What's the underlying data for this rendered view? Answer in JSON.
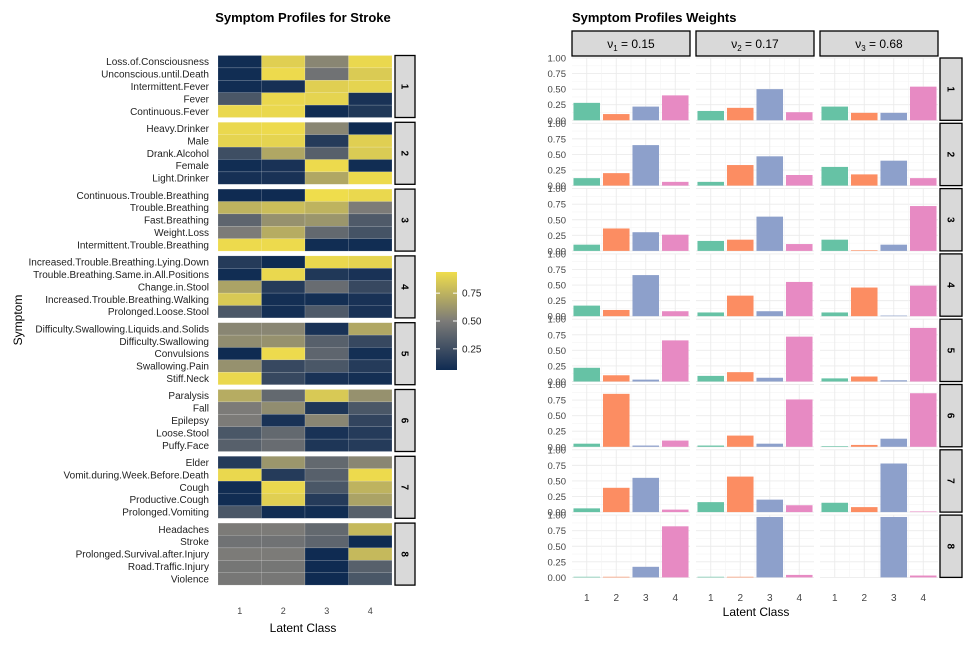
{
  "chart_data": [
    {
      "type": "heatmap",
      "title": "Symptom Profiles for Stroke",
      "xlabel": "Latent Class",
      "ylabel": "Symptom",
      "x_categories": [
        "1",
        "2",
        "3",
        "4"
      ],
      "legend": {
        "ticks": [
          "0.75",
          "0.50",
          "0.25"
        ],
        "tick_values": [
          0.75,
          0.5,
          0.25
        ],
        "range": [
          0.06,
          0.94
        ],
        "placement": "right"
      },
      "colors": {
        "low": "#00204d",
        "mid": "#7c7b78",
        "high": "#ffea46",
        "panel_strip": "#d9d9d9"
      },
      "panels": [
        {
          "label": "1",
          "rows": [
            {
              "symptom": "Loss.of.Consciousness",
              "values": [
                0.07,
                0.88,
                0.55,
                0.92
              ]
            },
            {
              "symptom": "Unconscious.until.Death",
              "values": [
                0.07,
                0.93,
                0.45,
                0.86
              ]
            },
            {
              "symptom": "Intermittent.Fever",
              "values": [
                0.07,
                0.09,
                0.88,
                0.9
              ]
            },
            {
              "symptom": "Fever",
              "values": [
                0.3,
                0.92,
                0.9,
                0.1
              ]
            },
            {
              "symptom": "Continuous.Fever",
              "values": [
                0.92,
                0.92,
                0.07,
                0.13
              ]
            }
          ]
        },
        {
          "label": "2",
          "rows": [
            {
              "symptom": "Heavy.Drinker",
              "values": [
                0.92,
                0.93,
                0.55,
                0.06
              ]
            },
            {
              "symptom": "Male",
              "values": [
                0.9,
                0.9,
                0.15,
                0.88
              ]
            },
            {
              "symptom": "Drank.Alcohol",
              "values": [
                0.25,
                0.7,
                0.35,
                0.86
              ]
            },
            {
              "symptom": "Female",
              "values": [
                0.07,
                0.1,
                0.93,
                0.07
              ]
            },
            {
              "symptom": "Light.Drinker",
              "values": [
                0.09,
                0.1,
                0.7,
                0.93
              ]
            }
          ]
        },
        {
          "label": "3",
          "rows": [
            {
              "symptom": "Continuous.Trouble.Breathing",
              "values": [
                0.06,
                0.06,
                0.94,
                0.92
              ]
            },
            {
              "symptom": "Trouble.Breathing",
              "values": [
                0.75,
                0.8,
                0.75,
                0.5
              ]
            },
            {
              "symptom": "Fast.Breathing",
              "values": [
                0.38,
                0.6,
                0.62,
                0.32
              ]
            },
            {
              "symptom": "Weight.Loss",
              "values": [
                0.5,
                0.72,
                0.4,
                0.28
              ]
            },
            {
              "symptom": "Intermittent.Trouble.Breathing",
              "values": [
                0.93,
                0.93,
                0.07,
                0.07
              ]
            }
          ]
        },
        {
          "label": "4",
          "rows": [
            {
              "symptom": "Increased.Trouble.Breathing.Lying.Down",
              "values": [
                0.15,
                0.06,
                0.92,
                0.9
              ]
            },
            {
              "symptom": "Trouble.Breathing.Same.in.All.Positions",
              "values": [
                0.07,
                0.92,
                0.13,
                0.1
              ]
            },
            {
              "symptom": "Change.in.Stool",
              "values": [
                0.68,
                0.15,
                0.42,
                0.22
              ]
            },
            {
              "symptom": "Increased.Trouble.Breathing.Walking",
              "values": [
                0.85,
                0.08,
                0.08,
                0.1
              ]
            },
            {
              "symptom": "Prolonged.Loose.Stool",
              "values": [
                0.3,
                0.08,
                0.32,
                0.1
              ]
            }
          ]
        },
        {
          "label": "5",
          "rows": [
            {
              "symptom": "Difficulty.Swallowing.Liquids.and.Solids",
              "values": [
                0.55,
                0.55,
                0.1,
                0.7
              ]
            },
            {
              "symptom": "Difficulty.Swallowing",
              "values": [
                0.58,
                0.6,
                0.35,
                0.22
              ]
            },
            {
              "symptom": "Convulsions",
              "values": [
                0.06,
                0.93,
                0.38,
                0.08
              ]
            },
            {
              "symptom": "Swallowing.Pain",
              "values": [
                0.6,
                0.22,
                0.3,
                0.15
              ]
            },
            {
              "symptom": "Stiff.Neck",
              "values": [
                0.92,
                0.22,
                0.1,
                0.08
              ]
            }
          ]
        },
        {
          "label": "6",
          "rows": [
            {
              "symptom": "Paralysis",
              "values": [
                0.72,
                0.4,
                0.85,
                0.6
              ]
            },
            {
              "symptom": "Fall",
              "values": [
                0.5,
                0.58,
                0.12,
                0.3
              ]
            },
            {
              "symptom": "Epilepsy",
              "values": [
                0.5,
                0.1,
                0.55,
                0.2
              ]
            },
            {
              "symptom": "Loose.Stool",
              "values": [
                0.3,
                0.4,
                0.1,
                0.15
              ]
            },
            {
              "symptom": "Puffy.Face",
              "values": [
                0.35,
                0.42,
                0.12,
                0.15
              ]
            }
          ]
        },
        {
          "label": "7",
          "rows": [
            {
              "symptom": "Elder",
              "values": [
                0.15,
                0.62,
                0.4,
                0.55
              ]
            },
            {
              "symptom": "Vomit.during.Week.Before.Death",
              "values": [
                0.92,
                0.15,
                0.35,
                0.93
              ]
            },
            {
              "symptom": "Cough",
              "values": [
                0.07,
                0.92,
                0.3,
                0.75
              ]
            },
            {
              "symptom": "Productive.Cough",
              "values": [
                0.07,
                0.88,
                0.15,
                0.68
              ]
            },
            {
              "symptom": "Prolonged.Vomiting",
              "values": [
                0.3,
                0.07,
                0.07,
                0.35
              ]
            }
          ]
        },
        {
          "label": "8",
          "rows": [
            {
              "symptom": "Headaches",
              "values": [
                0.5,
                0.5,
                0.4,
                0.78
              ]
            },
            {
              "symptom": "Stroke",
              "values": [
                0.45,
                0.45,
                0.38,
                0.06
              ]
            },
            {
              "symptom": "Prolonged.Survival.after.Injury",
              "values": [
                0.5,
                0.5,
                0.06,
                0.78
              ]
            },
            {
              "symptom": "Road.Traffic.Injury",
              "values": [
                0.47,
                0.47,
                0.06,
                0.35
              ]
            },
            {
              "symptom": "Violence",
              "values": [
                0.48,
                0.48,
                0.06,
                0.3
              ]
            }
          ]
        }
      ]
    },
    {
      "type": "bar",
      "title": "Symptom Profiles Weights",
      "xlabel": "Latent Class",
      "categories": [
        "1",
        "2",
        "3",
        "4"
      ],
      "ylim": [
        0,
        1
      ],
      "y_ticks": [
        "0.00",
        "0.25",
        "0.50",
        "0.75",
        "1.00"
      ],
      "bar_colors": [
        "#66c2a5",
        "#fc8d62",
        "#8da0cb",
        "#e78ac3"
      ],
      "columns": [
        {
          "symbol": "ν",
          "subscript": "1",
          "rest": " = 0.15"
        },
        {
          "symbol": "ν",
          "subscript": "2",
          "rest": " = 0.17"
        },
        {
          "symbol": "ν",
          "subscript": "3",
          "rest": " = 0.68"
        }
      ],
      "rows": [
        "1",
        "2",
        "3",
        "4",
        "5",
        "6",
        "7",
        "8"
      ],
      "values": [
        [
          [
            0.28,
            0.1,
            0.22,
            0.4
          ],
          [
            0.15,
            0.2,
            0.5,
            0.13
          ],
          [
            0.22,
            0.12,
            0.12,
            0.54
          ]
        ],
        [
          [
            0.12,
            0.2,
            0.65,
            0.06
          ],
          [
            0.06,
            0.33,
            0.47,
            0.17
          ],
          [
            0.3,
            0.18,
            0.4,
            0.12
          ]
        ],
        [
          [
            0.1,
            0.36,
            0.3,
            0.26
          ],
          [
            0.16,
            0.18,
            0.55,
            0.11
          ],
          [
            0.18,
            0.01,
            0.1,
            0.72
          ]
        ],
        [
          [
            0.17,
            0.1,
            0.66,
            0.08
          ],
          [
            0.06,
            0.33,
            0.08,
            0.55
          ],
          [
            0.06,
            0.46,
            0.01,
            0.49
          ]
        ],
        [
          [
            0.22,
            0.1,
            0.03,
            0.66
          ],
          [
            0.09,
            0.15,
            0.06,
            0.72
          ],
          [
            0.05,
            0.08,
            0.02,
            0.86
          ]
        ],
        [
          [
            0.05,
            0.85,
            0.02,
            0.1
          ],
          [
            0.02,
            0.18,
            0.05,
            0.76
          ],
          [
            0.01,
            0.03,
            0.13,
            0.86
          ]
        ],
        [
          [
            0.06,
            0.39,
            0.55,
            0.04
          ],
          [
            0.16,
            0.57,
            0.2,
            0.11
          ],
          [
            0.15,
            0.08,
            0.78,
            0.01
          ]
        ],
        [
          [
            0.01,
            0.01,
            0.17,
            0.82
          ],
          [
            0.01,
            0.01,
            0.97,
            0.04
          ],
          [
            0.0,
            0.0,
            0.97,
            0.03
          ]
        ]
      ]
    }
  ]
}
